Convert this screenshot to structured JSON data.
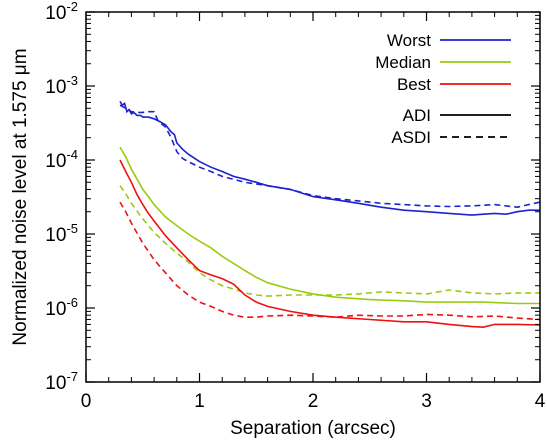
{
  "chart_data": {
    "type": "line",
    "title": "",
    "xlabel": "Separation (arcsec)",
    "ylabel": "Normalized noise level at 1.575 μm",
    "xlim": [
      0,
      4
    ],
    "ylim_log10": [
      -7,
      -2
    ],
    "y_scale": "log",
    "grid": false,
    "legend_position": "top-right",
    "x_ticks": [
      {
        "value": 0,
        "label": "0"
      },
      {
        "value": 1,
        "label": "1"
      },
      {
        "value": 2,
        "label": "2"
      },
      {
        "value": 3,
        "label": "3"
      },
      {
        "value": 4,
        "label": "4"
      }
    ],
    "y_ticks": [
      {
        "exp": -7,
        "base": "10",
        "sup": "-7"
      },
      {
        "exp": -6,
        "base": "10",
        "sup": "-6"
      },
      {
        "exp": -5,
        "base": "10",
        "sup": "-5"
      },
      {
        "exp": -4,
        "base": "10",
        "sup": "-4"
      },
      {
        "exp": -3,
        "base": "10",
        "sup": "-3"
      },
      {
        "exp": -2,
        "base": "10",
        "sup": "-2"
      }
    ],
    "legend": {
      "colors": [
        {
          "name": "Worst",
          "color": "#1c22cc"
        },
        {
          "name": "Median",
          "color": "#99cc11"
        },
        {
          "name": "Best",
          "color": "#ee1111"
        }
      ],
      "styles": [
        {
          "name": "ADI",
          "dash": "solid"
        },
        {
          "name": "ASDI",
          "dash": "dashed"
        }
      ]
    },
    "series": [
      {
        "group": "Worst",
        "method": "ADI",
        "color": "#1c22cc",
        "dash": "solid",
        "x": [
          0.3,
          0.32,
          0.34,
          0.36,
          0.38,
          0.4,
          0.42,
          0.45,
          0.48,
          0.5,
          0.55,
          0.6,
          0.65,
          0.7,
          0.75,
          0.78,
          0.8,
          0.85,
          0.9,
          1.0,
          1.1,
          1.2,
          1.3,
          1.4,
          1.5,
          1.6,
          1.8,
          2.0,
          2.2,
          2.4,
          2.6,
          2.8,
          3.0,
          3.2,
          3.4,
          3.5,
          3.6,
          3.7,
          3.8,
          3.9,
          4.0
        ],
        "y": [
          0.00062,
          0.00055,
          0.00058,
          0.00045,
          0.00048,
          0.00042,
          0.00044,
          0.0004,
          0.0004,
          0.00038,
          0.00038,
          0.00036,
          0.00033,
          0.0003,
          0.00024,
          0.00022,
          0.00017,
          0.00014,
          0.00012,
          9.5e-05,
          8e-05,
          7e-05,
          6e-05,
          5.5e-05,
          5e-05,
          4.5e-05,
          4e-05,
          3.2e-05,
          2.9e-05,
          2.6e-05,
          2.3e-05,
          2.1e-05,
          2e-05,
          1.9e-05,
          1.8e-05,
          1.85e-05,
          1.9e-05,
          1.85e-05,
          2e-05,
          2.1e-05,
          2.1e-05
        ]
      },
      {
        "group": "Worst",
        "method": "ASDI",
        "color": "#1c22cc",
        "dash": "dashed",
        "x": [
          0.3,
          0.35,
          0.4,
          0.45,
          0.5,
          0.55,
          0.6,
          0.63,
          0.65,
          0.7,
          0.75,
          0.8,
          0.85,
          0.9,
          1.0,
          1.1,
          1.2,
          1.4,
          1.6,
          1.8,
          2.0,
          2.2,
          2.4,
          2.6,
          2.8,
          3.0,
          3.2,
          3.4,
          3.6,
          3.8,
          3.9,
          4.0
        ],
        "y": [
          0.00055,
          0.0005,
          0.00045,
          0.00044,
          0.00044,
          0.00045,
          0.00045,
          0.00035,
          0.00032,
          0.00028,
          0.0002,
          0.00013,
          0.000105,
          9.5e-05,
          8e-05,
          7e-05,
          6e-05,
          5e-05,
          4.5e-05,
          4e-05,
          3.3e-05,
          3e-05,
          2.8e-05,
          2.6e-05,
          2.5e-05,
          2.4e-05,
          2.35e-05,
          2.4e-05,
          2.5e-05,
          2.3e-05,
          2.5e-05,
          2.7e-05
        ]
      },
      {
        "group": "Median",
        "method": "ADI",
        "color": "#99cc11",
        "dash": "solid",
        "x": [
          0.3,
          0.35,
          0.4,
          0.45,
          0.5,
          0.55,
          0.6,
          0.7,
          0.8,
          0.9,
          1.0,
          1.1,
          1.2,
          1.3,
          1.4,
          1.5,
          1.6,
          1.8,
          2.0,
          2.2,
          2.5,
          2.8,
          3.0,
          3.2,
          3.5,
          3.8,
          4.0
        ],
        "y": [
          0.00015,
          0.00011,
          7.5e-05,
          5.5e-05,
          4e-05,
          3.2e-05,
          2.5e-05,
          1.7e-05,
          1.3e-05,
          1e-05,
          8e-06,
          6.5e-06,
          5e-06,
          4e-06,
          3.2e-06,
          2.6e-06,
          2.2e-06,
          1.8e-06,
          1.55e-06,
          1.4e-06,
          1.3e-06,
          1.25e-06,
          1.2e-06,
          1.2e-06,
          1.2e-06,
          1.15e-06,
          1.15e-06
        ]
      },
      {
        "group": "Median",
        "method": "ASDI",
        "color": "#99cc11",
        "dash": "dashed",
        "x": [
          0.3,
          0.35,
          0.4,
          0.5,
          0.6,
          0.7,
          0.8,
          0.9,
          1.0,
          1.1,
          1.2,
          1.3,
          1.4,
          1.5,
          1.6,
          1.8,
          2.0,
          2.2,
          2.4,
          2.6,
          2.8,
          3.0,
          3.2,
          3.4,
          3.6,
          3.8,
          4.0
        ],
        "y": [
          4.5e-05,
          3.5e-05,
          2.6e-05,
          1.6e-05,
          1.05e-05,
          7.5e-06,
          5.5e-06,
          4.2e-06,
          3e-06,
          2.4e-06,
          2e-06,
          1.8e-06,
          1.6e-06,
          1.5e-06,
          1.45e-06,
          1.5e-06,
          1.5e-06,
          1.5e-06,
          1.55e-06,
          1.65e-06,
          1.6e-06,
          1.55e-06,
          1.75e-06,
          1.6e-06,
          1.55e-06,
          1.6e-06,
          1.6e-06
        ]
      },
      {
        "group": "Best",
        "method": "ADI",
        "color": "#ee1111",
        "dash": "solid",
        "x": [
          0.3,
          0.35,
          0.4,
          0.45,
          0.5,
          0.55,
          0.6,
          0.7,
          0.8,
          0.9,
          1.0,
          1.1,
          1.2,
          1.3,
          1.4,
          1.5,
          1.6,
          1.8,
          2.0,
          2.2,
          2.5,
          2.8,
          3.0,
          3.2,
          3.4,
          3.5,
          3.6,
          3.8,
          4.0
        ],
        "y": [
          0.0001,
          7e-05,
          5e-05,
          3.4e-05,
          2.5e-05,
          1.9e-05,
          1.5e-05,
          9.5e-06,
          6.5e-06,
          4.5e-06,
          3.2e-06,
          2.8e-06,
          2.5e-06,
          2.1e-06,
          1.5e-06,
          1.2e-06,
          1.05e-06,
          9e-07,
          8e-07,
          7.5e-07,
          7e-07,
          6.5e-07,
          6.5e-07,
          6e-07,
          5.6e-07,
          5.5e-07,
          6e-07,
          6e-07,
          5.9e-07
        ]
      },
      {
        "group": "Best",
        "method": "ASDI",
        "color": "#ee1111",
        "dash": "dashed",
        "x": [
          0.3,
          0.35,
          0.4,
          0.5,
          0.6,
          0.7,
          0.8,
          0.9,
          1.0,
          1.1,
          1.2,
          1.3,
          1.4,
          1.5,
          1.6,
          1.8,
          2.0,
          2.2,
          2.4,
          2.6,
          2.8,
          3.0,
          3.2,
          3.4,
          3.6,
          3.8,
          4.0
        ],
        "y": [
          2.7e-05,
          2e-05,
          1.4e-05,
          7.5e-06,
          4.5e-06,
          3e-06,
          2e-06,
          1.5e-06,
          1.2e-06,
          1.05e-06,
          9e-07,
          8e-07,
          7.5e-07,
          7.5e-07,
          7.8e-07,
          8e-07,
          7.8e-07,
          7.5e-07,
          8e-07,
          7.8e-07,
          7.8e-07,
          8.2e-07,
          8e-07,
          7.6e-07,
          7.8e-07,
          7.3e-07,
          7e-07
        ]
      }
    ]
  }
}
